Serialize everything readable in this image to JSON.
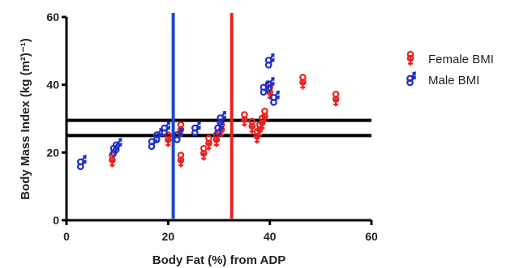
{
  "chart_data": {
    "type": "scatter",
    "xlabel": "Body Fat (%) from ADP",
    "ylabel": "Body Mass Index (kg (m²)⁻¹)",
    "xlim": [
      0,
      60
    ],
    "ylim": [
      0,
      60
    ],
    "x_ticks": [
      "0",
      "20",
      "40",
      "60"
    ],
    "y_ticks": [
      "0",
      "20",
      "40",
      "60"
    ],
    "grid": false,
    "legend_position": "right",
    "series": [
      {
        "name": "Female BMI",
        "color": "#e8231f",
        "marker": "female-symbol",
        "points": [
          {
            "x": 9,
            "y": 18
          },
          {
            "x": 20,
            "y": 24
          },
          {
            "x": 22.5,
            "y": 27
          },
          {
            "x": 22.5,
            "y": 18
          },
          {
            "x": 27,
            "y": 20
          },
          {
            "x": 28,
            "y": 23
          },
          {
            "x": 29.5,
            "y": 24
          },
          {
            "x": 30.5,
            "y": 27
          },
          {
            "x": 35,
            "y": 30
          },
          {
            "x": 36.5,
            "y": 28
          },
          {
            "x": 37.5,
            "y": 25
          },
          {
            "x": 38,
            "y": 27
          },
          {
            "x": 38.5,
            "y": 29
          },
          {
            "x": 39,
            "y": 31
          },
          {
            "x": 40,
            "y": 38
          },
          {
            "x": 46.5,
            "y": 41
          },
          {
            "x": 53,
            "y": 36
          }
        ]
      },
      {
        "name": "Male BMI",
        "color": "#1d2fc9",
        "marker": "male-symbol",
        "points": [
          {
            "x": 3,
            "y": 17
          },
          {
            "x": 9.5,
            "y": 21
          },
          {
            "x": 10,
            "y": 22
          },
          {
            "x": 17,
            "y": 23
          },
          {
            "x": 18,
            "y": 25
          },
          {
            "x": 19.5,
            "y": 27
          },
          {
            "x": 22,
            "y": 25
          },
          {
            "x": 25.5,
            "y": 27
          },
          {
            "x": 30,
            "y": 27
          },
          {
            "x": 30.5,
            "y": 30
          },
          {
            "x": 39,
            "y": 39
          },
          {
            "x": 40,
            "y": 40
          },
          {
            "x": 40,
            "y": 47
          },
          {
            "x": 41,
            "y": 36
          }
        ]
      }
    ],
    "reference_lines": [
      {
        "orientation": "horizontal",
        "value": 25,
        "color": "#000000"
      },
      {
        "orientation": "horizontal",
        "value": 29.5,
        "color": "#000000"
      },
      {
        "orientation": "vertical",
        "value": 21,
        "color": "#1d48c9"
      },
      {
        "orientation": "vertical",
        "value": 32.5,
        "color": "#e8231f"
      }
    ]
  }
}
